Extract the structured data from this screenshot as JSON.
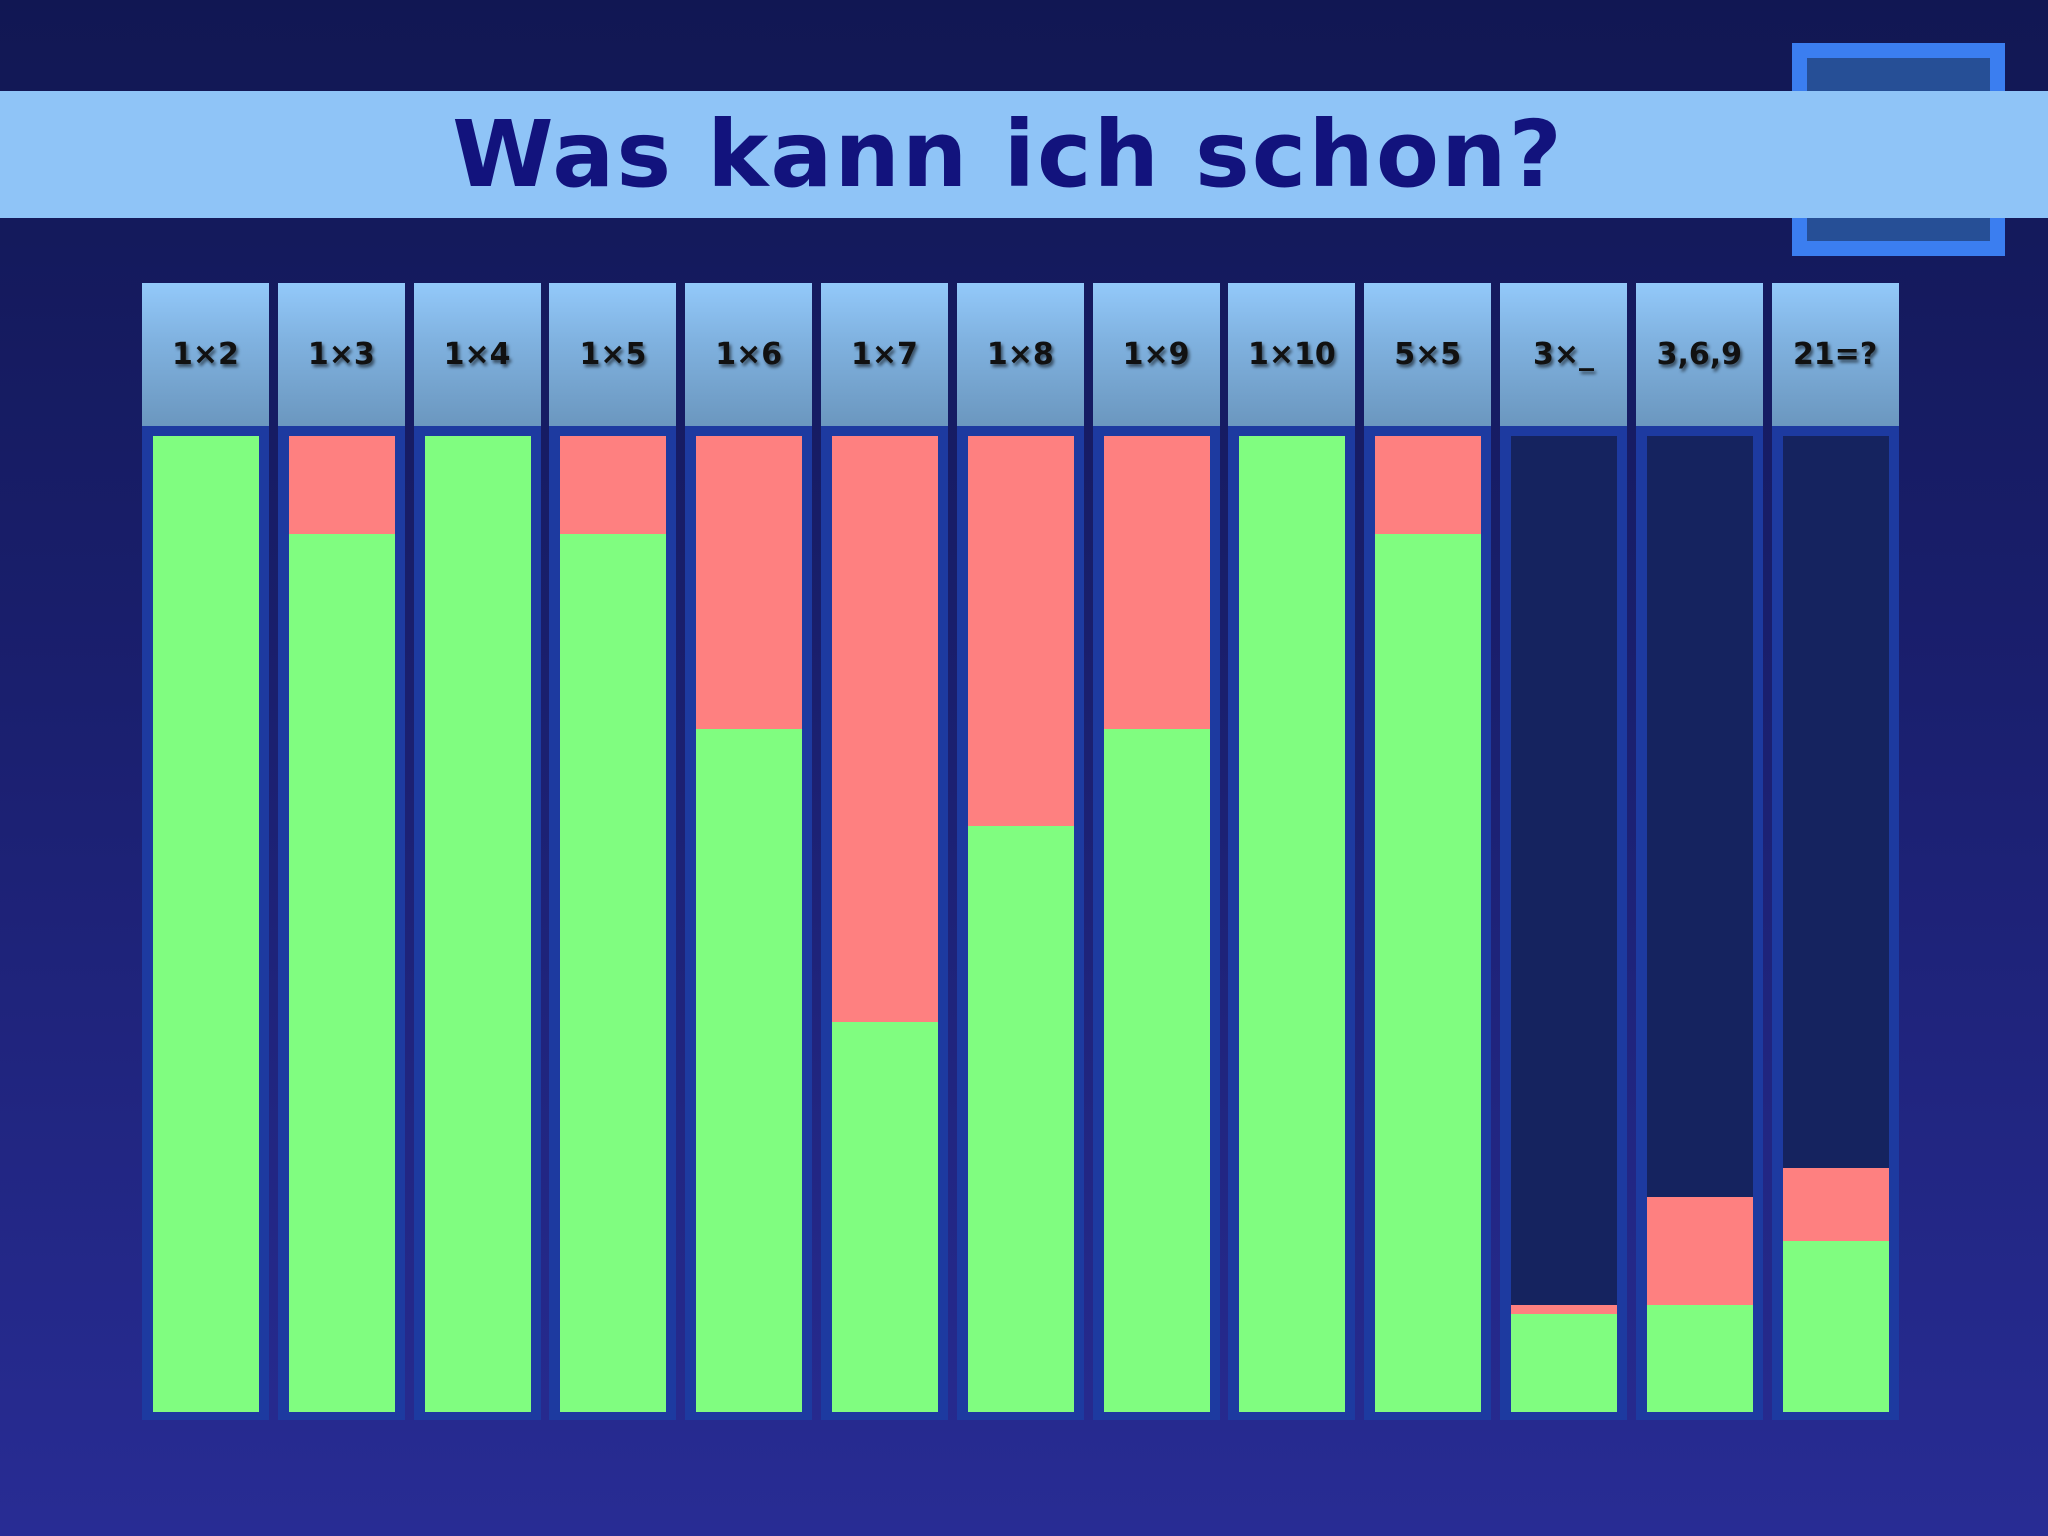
{
  "title": "Was kann ich schon?",
  "colors": {
    "known": "#80fd80",
    "unknown": "#fe8080",
    "empty": "#15235f",
    "banner": "#8fc4f7",
    "title": "#12137d"
  },
  "chart_data": {
    "type": "bar",
    "stacked": true,
    "orientation": "vertical",
    "title": "Was kann ich schon?",
    "categories": [
      "1×2",
      "1×3",
      "1×4",
      "1×5",
      "1×6",
      "1×7",
      "1×8",
      "1×9",
      "1×10",
      "5×5",
      "3×_",
      "3,6,9",
      "21=?"
    ],
    "ylim": [
      0,
      1
    ],
    "grid": false,
    "series": [
      {
        "color": "#80fd80",
        "values": [
          1.0,
          0.9,
          1.0,
          0.9,
          0.7,
          0.4,
          0.6,
          0.7,
          1.0,
          0.9,
          0.1,
          0.11,
          0.175
        ]
      },
      {
        "color": "#fe8080",
        "values": [
          0.0,
          0.1,
          0.0,
          0.1,
          0.3,
          0.6,
          0.4,
          0.3,
          0.0,
          0.1,
          0.01,
          0.11,
          0.075
        ]
      }
    ]
  }
}
